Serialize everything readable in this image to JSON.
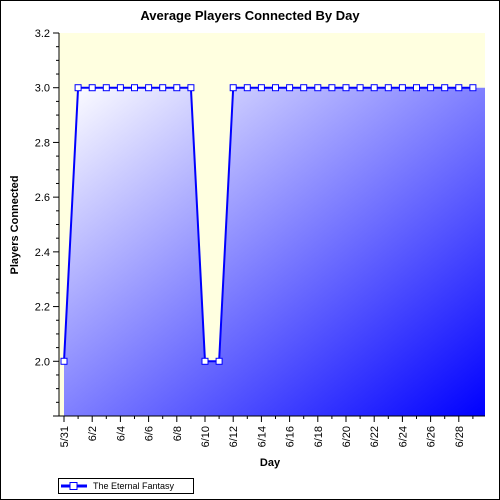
{
  "chart_data": {
    "type": "area",
    "title": "Average Players Connected By Day",
    "xlabel": "Day",
    "ylabel": "Players Connected",
    "ylim": [
      1.8,
      3.2
    ],
    "y_ticks": [
      "2.0",
      "2.2",
      "2.4",
      "2.6",
      "2.8",
      "3.0",
      "3.2"
    ],
    "x_tick_labels": [
      "5/31",
      "6/2",
      "6/4",
      "6/6",
      "6/8",
      "6/10",
      "6/12",
      "6/14",
      "6/16",
      "6/18",
      "6/20",
      "6/22",
      "6/24",
      "6/26",
      "6/28"
    ],
    "legend_position": "bottom-left",
    "grid": false,
    "series": [
      {
        "name": "The Eternal Fantasy",
        "x": [
          "5/31",
          "6/1",
          "6/2",
          "6/3",
          "6/4",
          "6/5",
          "6/6",
          "6/7",
          "6/8",
          "6/9",
          "6/10",
          "6/11",
          "6/12",
          "6/13",
          "6/14",
          "6/15",
          "6/16",
          "6/17",
          "6/18",
          "6/19",
          "6/20",
          "6/21",
          "6/22",
          "6/23",
          "6/24",
          "6/25",
          "6/26",
          "6/27",
          "6/28",
          "6/29"
        ],
        "values": [
          2.0,
          3.0,
          3.0,
          3.0,
          3.0,
          3.0,
          3.0,
          3.0,
          3.0,
          3.0,
          2.0,
          2.0,
          3.0,
          3.0,
          3.0,
          3.0,
          3.0,
          3.0,
          3.0,
          3.0,
          3.0,
          3.0,
          3.0,
          3.0,
          3.0,
          3.0,
          3.0,
          3.0,
          3.0,
          3.0
        ],
        "line_color": "#0000ff",
        "fill_gradient": [
          "#ffffff",
          "#0000ff"
        ]
      }
    ],
    "plot_background": "#ffffe0"
  }
}
